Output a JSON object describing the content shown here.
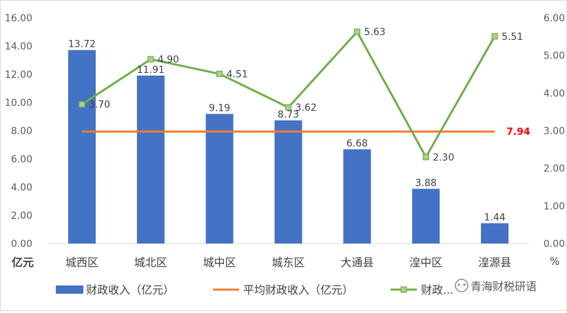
{
  "chart_data": {
    "type": "bar",
    "categories": [
      "城西区",
      "城北区",
      "城中区",
      "城东区",
      "大通县",
      "湟中区",
      "湟源县"
    ],
    "series": [
      {
        "name": "财政收入（亿元）",
        "type": "bar",
        "axis": "left",
        "color": "#4472C4",
        "values": [
          13.72,
          11.91,
          9.19,
          8.73,
          6.68,
          3.88,
          1.44
        ],
        "labels": [
          "13.72",
          "11.91",
          "9.19",
          "8.73",
          "6.68",
          "3.88",
          "1.44"
        ]
      },
      {
        "name": "平均财政收入（亿元）",
        "type": "line",
        "axis": "left",
        "color": "#ED7D31",
        "value": 7.94,
        "label": "7.94",
        "label_color": "#FF0000"
      },
      {
        "name": "财政...",
        "type": "line",
        "axis": "right",
        "color": "#70AD47",
        "marker_color": "#A9D18E",
        "values": [
          3.7,
          4.9,
          4.51,
          3.62,
          5.63,
          2.3,
          5.51
        ],
        "labels": [
          "3.70",
          "4.90",
          "4.51",
          "3.62",
          "5.63",
          "2.30",
          "5.51"
        ]
      }
    ],
    "y_left": {
      "unit": "亿元",
      "ylim": [
        0,
        16
      ],
      "ticks": [
        "0.00",
        "2.00",
        "4.00",
        "6.00",
        "8.00",
        "10.00",
        "12.00",
        "14.00",
        "16.00"
      ]
    },
    "y_right": {
      "unit": "%",
      "ylim": [
        0,
        6
      ],
      "ticks": [
        "0.00",
        "1.00",
        "2.00",
        "3.00",
        "4.00",
        "5.00",
        "6.00"
      ]
    },
    "legend": {
      "placement": "bottom",
      "items": [
        "财政收入（亿元）",
        "平均财政收入（亿元）",
        "财政..."
      ]
    },
    "watermark": "青海财税研语"
  }
}
